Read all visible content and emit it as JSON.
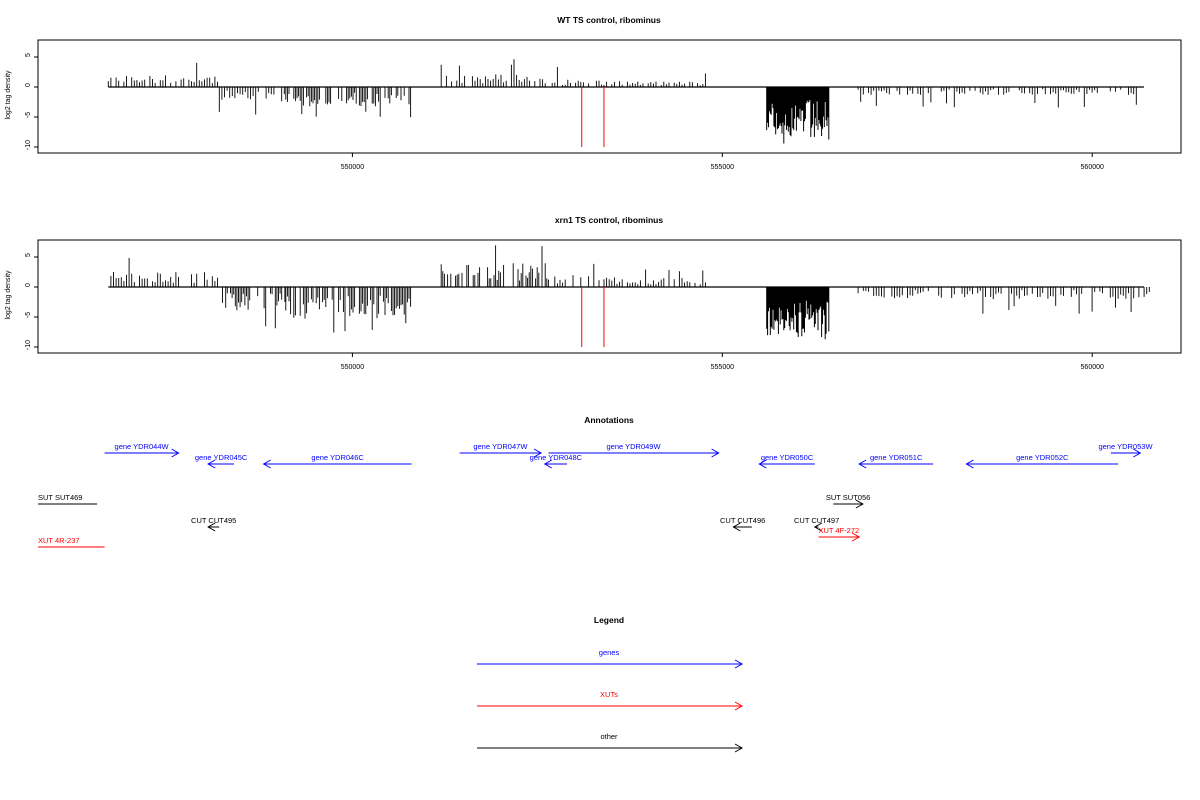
{
  "colors": {
    "gene": "#0000ff",
    "xut": "#ff0000",
    "other": "#000000",
    "signal": "#000000",
    "marker": "#ff0000",
    "frame": "#000000"
  },
  "chart_data": [
    {
      "type": "bar",
      "title": "WT TS control, ribominus",
      "ylabel": "log2 tag density",
      "xlim": [
        545750,
        561200
      ],
      "ylim": [
        -10,
        8
      ],
      "xticks": [
        "550000",
        "555000",
        "560000"
      ],
      "yticks": [
        "-10",
        "-5",
        "0",
        "5"
      ],
      "markers_x": [
        553100,
        553400
      ],
      "segments": [
        {
          "x": [
            546700,
            548200
          ],
          "mean": 1.5,
          "max": 4.5
        },
        {
          "x": [
            548200,
            549100
          ],
          "mean": -1.8,
          "max": 5.2
        },
        {
          "x": [
            549100,
            550800
          ],
          "mean": -2.4,
          "max": 5.5
        },
        {
          "x": [
            551200,
            552700
          ],
          "mean": 1.6,
          "max": 5.0
        },
        {
          "x": [
            552700,
            553400
          ],
          "mean": 0.9,
          "max": 3.5
        },
        {
          "x": [
            553400,
            554800
          ],
          "mean": 0.7,
          "max": 2.5
        },
        {
          "x": [
            555600,
            556450
          ],
          "mean": -6.0,
          "max": 9.5
        },
        {
          "x": [
            556800,
            560700
          ],
          "mean": -1.0,
          "max": 3.5
        }
      ]
    },
    {
      "type": "bar",
      "title": "xrn1 TS control, ribominus",
      "ylabel": "log2 tag density",
      "xlim": [
        545750,
        561200
      ],
      "ylim": [
        -10,
        8
      ],
      "xticks": [
        "550000",
        "555000",
        "560000"
      ],
      "yticks": [
        "-10",
        "-5",
        "0",
        "5"
      ],
      "markers_x": [
        553100,
        553400
      ],
      "segments": [
        {
          "x": [
            546700,
            548200
          ],
          "mean": 1.9,
          "max": 5.5
        },
        {
          "x": [
            548200,
            549100
          ],
          "mean": -3.0,
          "max": 7.0
        },
        {
          "x": [
            549100,
            550800
          ],
          "mean": -4.0,
          "max": 8.0
        },
        {
          "x": [
            551200,
            552700
          ],
          "mean": 3.0,
          "max": 7.5
        },
        {
          "x": [
            552700,
            553400
          ],
          "mean": 1.5,
          "max": 4.0
        },
        {
          "x": [
            553400,
            554800
          ],
          "mean": 1.2,
          "max": 3.5
        },
        {
          "x": [
            555600,
            556450
          ],
          "mean": -6.2,
          "max": 9.8
        },
        {
          "x": [
            556800,
            560800
          ],
          "mean": -1.5,
          "max": 4.5
        }
      ]
    }
  ],
  "annotations": {
    "title": "Annotations",
    "features": [
      {
        "label": "gene YDR044W",
        "kind": "gene",
        "strand": "+",
        "start": 546650,
        "end": 547650,
        "row": 0
      },
      {
        "label": "gene YDR045C",
        "kind": "gene",
        "strand": "-",
        "start": 548050,
        "end": 548400,
        "row": 1
      },
      {
        "label": "gene YDR046C",
        "kind": "gene",
        "strand": "-",
        "start": 548800,
        "end": 550800,
        "row": 1
      },
      {
        "label": "gene YDR047W",
        "kind": "gene",
        "strand": "+",
        "start": 551450,
        "end": 552550,
        "row": 0
      },
      {
        "label": "gene YDR048C",
        "kind": "gene",
        "strand": "-",
        "start": 552600,
        "end": 552900,
        "row": 1
      },
      {
        "label": "gene YDR049W",
        "kind": "gene",
        "strand": "+",
        "start": 552650,
        "end": 554950,
        "row": 0
      },
      {
        "label": "gene YDR050C",
        "kind": "gene",
        "strand": "-",
        "start": 555500,
        "end": 556250,
        "row": 1
      },
      {
        "label": "gene YDR051C",
        "kind": "gene",
        "strand": "-",
        "start": 556850,
        "end": 557850,
        "row": 1
      },
      {
        "label": "gene YDR052C",
        "kind": "gene",
        "strand": "-",
        "start": 558300,
        "end": 560350,
        "row": 1
      },
      {
        "label": "gene YDR053W",
        "kind": "gene",
        "strand": "+",
        "start": 560250,
        "end": 560650,
        "row": 0
      },
      {
        "label": "SUT SUT469",
        "kind": "other",
        "strand": "none",
        "start": 545750,
        "end": 546550,
        "row": 2
      },
      {
        "label": "SUT SUT056",
        "kind": "other",
        "strand": "+",
        "start": 556500,
        "end": 556900,
        "row": 2
      },
      {
        "label": "CUT CUT495",
        "kind": "other",
        "strand": "-",
        "start": 548050,
        "end": 548200,
        "row": 3
      },
      {
        "label": "CUT CUT496",
        "kind": "other",
        "strand": "-",
        "start": 555150,
        "end": 555400,
        "row": 3
      },
      {
        "label": "CUT CUT497",
        "kind": "other",
        "strand": "-",
        "start": 556250,
        "end": 556300,
        "row": 3
      },
      {
        "label": "XUT 4F-272",
        "kind": "xut",
        "strand": "+",
        "start": 556300,
        "end": 556850,
        "row": 4
      },
      {
        "label": "XUT 4R-237",
        "kind": "xut",
        "strand": "none",
        "start": 545750,
        "end": 546650,
        "row": 5
      }
    ]
  },
  "legend": {
    "title": "Legend",
    "items": [
      {
        "label": "genes",
        "kind": "gene"
      },
      {
        "label": "XUTs",
        "kind": "xut"
      },
      {
        "label": "other",
        "kind": "other"
      }
    ]
  }
}
